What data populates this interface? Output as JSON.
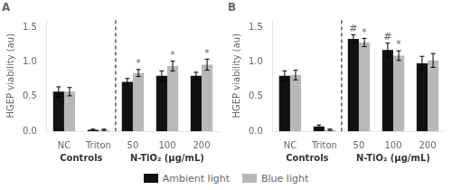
{
  "chart_data": [
    {
      "type": "bar",
      "title": "A",
      "categories": [
        "NC",
        "Triton",
        "50",
        "100",
        "200"
      ],
      "series": [
        {
          "name": "Ambient light",
          "color": "#111111",
          "values": [
            0.57,
            0.02,
            0.71,
            0.8,
            0.8
          ],
          "errors": [
            0.07,
            0.01,
            0.05,
            0.07,
            0.05
          ]
        },
        {
          "name": "Blue light",
          "color": "#b8b8b8",
          "values": [
            0.57,
            0.02,
            0.84,
            0.94,
            0.96
          ],
          "errors": [
            0.06,
            0.01,
            0.05,
            0.07,
            0.08
          ]
        }
      ],
      "annotations": [
        {
          "text": "*",
          "series": "Blue light",
          "category": "50"
        },
        {
          "text": "*",
          "series": "Blue light",
          "category": "100"
        },
        {
          "text": "*",
          "series": "Blue light",
          "category": "200"
        }
      ],
      "groups": [
        {
          "label": "Controls",
          "categories": [
            "NC",
            "Triton"
          ]
        },
        {
          "label": "N-TiO₂ (μg/mL)",
          "categories": [
            "50",
            "100",
            "200"
          ]
        }
      ],
      "ylabel": "HGEP viability (au)",
      "ylim": [
        0,
        1.6
      ],
      "yticks": [
        {
          "value": 0,
          "label": "0.0"
        },
        0.5,
        {
          "value": 1,
          "label": "1.0"
        },
        1.5
      ],
      "grid": false,
      "legend": "bottom"
    },
    {
      "type": "bar",
      "title": "B",
      "categories": [
        "NC",
        "Triton",
        "50",
        "100",
        "200"
      ],
      "series": [
        {
          "name": "Ambient light",
          "color": "#111111",
          "values": [
            0.8,
            0.07,
            1.33,
            1.17,
            0.98
          ],
          "errors": [
            0.07,
            0.02,
            0.06,
            0.1,
            0.1
          ]
        },
        {
          "name": "Blue light",
          "color": "#b8b8b8",
          "values": [
            0.81,
            0.02,
            1.28,
            1.09,
            1.02
          ],
          "errors": [
            0.07,
            0.01,
            0.06,
            0.07,
            0.1
          ]
        }
      ],
      "annotations": [
        {
          "text": "*",
          "series": "Blue light",
          "category": "50"
        },
        {
          "text": "*",
          "series": "Blue light",
          "category": "100"
        },
        {
          "text": "#",
          "series": "Ambient light",
          "category": "50"
        },
        {
          "text": "#",
          "series": "Ambient light",
          "category": "100"
        }
      ],
      "groups": [
        {
          "label": "Controls",
          "categories": [
            "NC",
            "Triton"
          ]
        },
        {
          "label": "N-TiO₂ (μg/mL)",
          "categories": [
            "50",
            "100",
            "200"
          ]
        }
      ],
      "ylabel": "HGEP viability (au)",
      "ylim": [
        0,
        1.6
      ],
      "yticks": [
        {
          "value": 0,
          "label": "0.0"
        },
        0.5,
        {
          "value": 1,
          "label": "1.0"
        },
        1.5
      ],
      "grid": false
    }
  ]
}
